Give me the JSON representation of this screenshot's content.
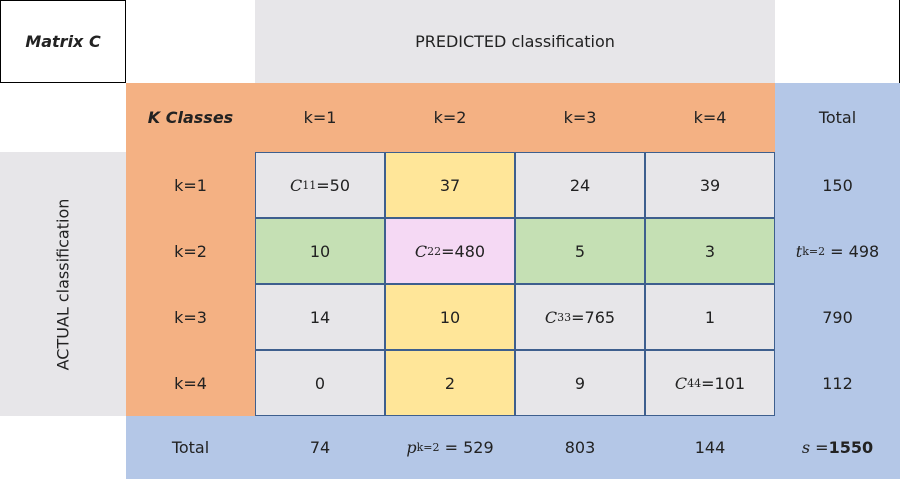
{
  "title": "Matrix C",
  "header": "PREDICTED classification",
  "side": "ACTUAL classification",
  "corner": "K Classes",
  "columns": [
    "k=1",
    "k=2",
    "k=3",
    "k=4",
    "Total"
  ],
  "rows": [
    {
      "label": "k=1",
      "cells": [
        {
          "symbol": "C",
          "sub": "11",
          "text": "=50"
        },
        "37",
        "24",
        "39",
        "150"
      ]
    },
    {
      "label": "k=2",
      "cells": [
        "10",
        {
          "symbol": "C",
          "sub": "22",
          "text": "=480"
        },
        "5",
        "3",
        {
          "symbol": "t",
          "sub": "k=2",
          "text": " = 498"
        }
      ]
    },
    {
      "label": "k=3",
      "cells": [
        "14",
        "10",
        {
          "symbol": "C",
          "sub": "33",
          "text": "=765"
        },
        "1",
        "790"
      ]
    },
    {
      "label": "k=4",
      "cells": [
        "0",
        "2",
        "9",
        {
          "symbol": "C",
          "sub": "44",
          "text": "=101"
        },
        "112"
      ]
    }
  ],
  "total_row": {
    "label": "Total",
    "cells": [
      "74",
      {
        "symbol": "p",
        "sub": "k=2",
        "text": " = 529"
      },
      "803",
      "144",
      {
        "symbol": "s",
        "text": " =",
        "bold": "1550"
      }
    ]
  }
}
